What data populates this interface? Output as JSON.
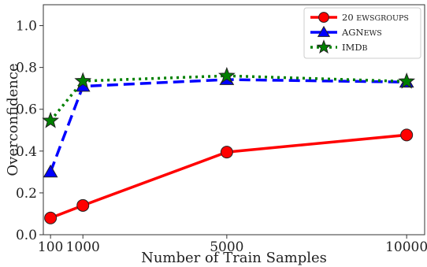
{
  "chart_data": {
    "type": "line",
    "title": "",
    "xlabel": "Number of Train Samples",
    "ylabel": "Overconfidence",
    "xlim": [
      -100,
      10500
    ],
    "ylim": [
      0.0,
      1.1
    ],
    "x_ticks": [
      100,
      1000,
      5000,
      10000
    ],
    "y_ticks": [
      0.0,
      0.2,
      0.4,
      0.6,
      0.8,
      1.0
    ],
    "x_tick_labels": [
      "100",
      "1000",
      "5000",
      "10000"
    ],
    "y_tick_labels": [
      "0.0",
      "0.2",
      "0.4",
      "0.6",
      "0.8",
      "1.0"
    ],
    "grid": false,
    "legend_position": "top-right",
    "series": [
      {
        "name": "20 Newsgroups",
        "legend_parts": [
          [
            "20 ",
            "N"
          ],
          [
            "EWSGROUPS",
            "sc"
          ]
        ],
        "color": "#ff0000",
        "line_style": "solid",
        "marker": "circle",
        "x": [
          100,
          1000,
          5000,
          10000
        ],
        "y": [
          0.08,
          0.14,
          0.395,
          0.477
        ]
      },
      {
        "name": "AGNews",
        "legend_parts": [
          [
            "AGN",
            "N"
          ],
          [
            "EWS",
            "sc"
          ]
        ],
        "color": "#0000ff",
        "line_style": "dashed",
        "marker": "triangle",
        "x": [
          100,
          1000,
          5000,
          10000
        ],
        "y": [
          0.3,
          0.71,
          0.742,
          0.73
        ]
      },
      {
        "name": "IMDb",
        "legend_parts": [
          [
            "IMD",
            "N"
          ],
          [
            "B",
            "sc"
          ]
        ],
        "color": "#008000",
        "line_style": "dotted",
        "marker": "star",
        "x": [
          100,
          1000,
          5000,
          10000
        ],
        "y": [
          0.545,
          0.735,
          0.76,
          0.733
        ]
      }
    ]
  }
}
